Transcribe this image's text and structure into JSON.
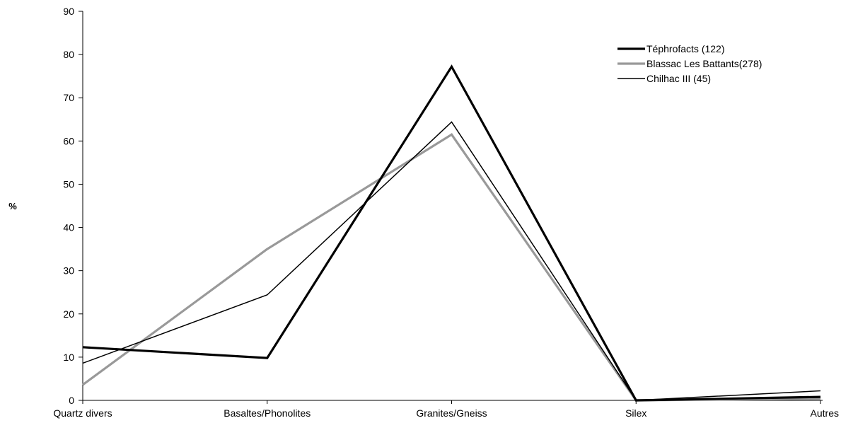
{
  "chart_data": {
    "type": "line",
    "title": "",
    "xlabel": "",
    "ylabel": "%",
    "categories": [
      "Quartz divers",
      "Basaltes/Phonolites",
      "Granites/Gneiss",
      "Silex",
      "Autres"
    ],
    "ylim": [
      0,
      90
    ],
    "yticks": [
      0,
      10,
      20,
      30,
      40,
      50,
      60,
      70,
      80,
      90
    ],
    "grid": false,
    "legend_position": "top-right",
    "series": [
      {
        "name": "Téphrofacts (122)",
        "values": [
          12.3,
          9.8,
          77.2,
          0,
          0.8
        ],
        "color": "#000000",
        "width": 3.2
      },
      {
        "name": "Blassac Les Battants(278)",
        "values": [
          3.6,
          35.0,
          61.5,
          0,
          0.4
        ],
        "color": "#999999",
        "width": 3.2
      },
      {
        "name": "Chilhac III (45)",
        "values": [
          8.6,
          24.4,
          64.4,
          0,
          2.2
        ],
        "color": "#000000",
        "width": 1.5
      }
    ]
  }
}
